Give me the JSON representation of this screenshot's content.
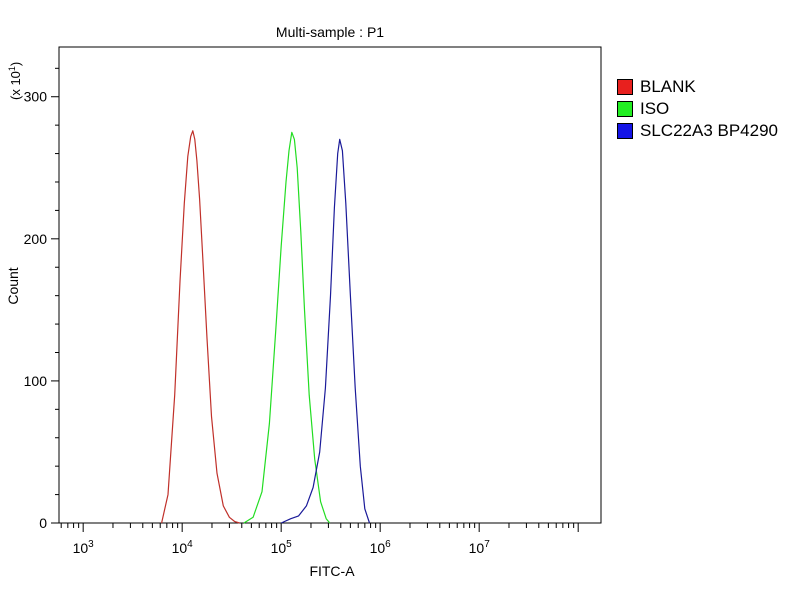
{
  "chart_data": {
    "type": "line",
    "title": "Multi-sample : P1",
    "xlabel": "FITC-A",
    "ylabel": "Count",
    "y_multiplier": "(x 10",
    "y_multiplier_exp": "1",
    "y_multiplier_close": ")",
    "x_scale": "log",
    "xlim": [
      570,
      170000000
    ],
    "ylim": [
      0,
      335
    ],
    "x_ticks": [
      {
        "base": "10",
        "exp": "3",
        "value": 1000
      },
      {
        "base": "10",
        "exp": "4",
        "value": 10000
      },
      {
        "base": "10",
        "exp": "5",
        "value": 100000
      },
      {
        "base": "10",
        "exp": "6",
        "value": 1000000
      },
      {
        "base": "10",
        "exp": "7",
        "value": 10000000
      }
    ],
    "y_ticks": [
      0,
      100,
      200,
      300
    ],
    "grid": false,
    "legend_position": "right",
    "series": [
      {
        "name": "BLANK",
        "color": "#c0302a",
        "x": [
          6200,
          7200,
          8400,
          9500,
          10500,
          11400,
          12200,
          12800,
          13400,
          14100,
          15000,
          16200,
          17800,
          19800,
          22500,
          26000,
          30000,
          34000,
          38000
        ],
        "y": [
          0,
          20,
          90,
          170,
          225,
          258,
          272,
          276,
          270,
          255,
          228,
          185,
          130,
          75,
          35,
          12,
          4,
          1,
          0
        ]
      },
      {
        "name": "ISO",
        "color": "#22dd22",
        "x": [
          42000,
          52000,
          64000,
          76000,
          88000,
          100000,
          112000,
          120000,
          128000,
          136000,
          145000,
          158000,
          172000,
          192000,
          218000,
          250000,
          285000,
          310000
        ],
        "y": [
          0,
          4,
          22,
          70,
          135,
          195,
          240,
          262,
          275,
          270,
          250,
          205,
          150,
          90,
          45,
          15,
          3,
          0
        ]
      },
      {
        "name": "SLC22A3 BP4290",
        "color": "#1a1a99",
        "x": [
          100000,
          125000,
          150000,
          180000,
          210000,
          245000,
          280000,
          315000,
          345000,
          372000,
          390000,
          415000,
          450000,
          500000,
          560000,
          630000,
          700000,
          780000
        ],
        "y": [
          0,
          3,
          5,
          12,
          25,
          50,
          95,
          160,
          222,
          260,
          270,
          262,
          225,
          160,
          95,
          40,
          10,
          0
        ]
      }
    ]
  }
}
